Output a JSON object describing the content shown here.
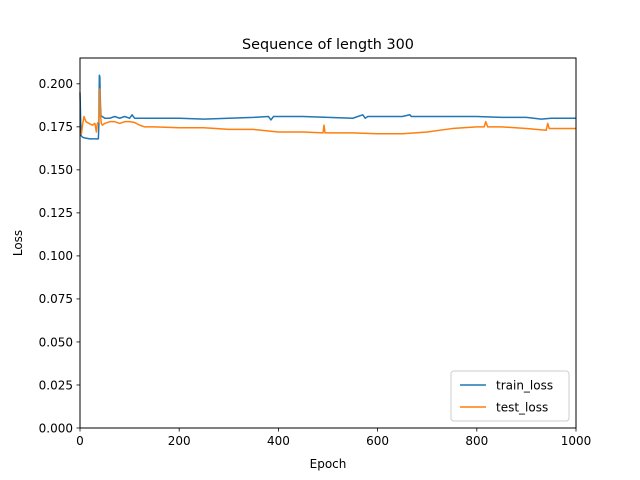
{
  "chart_data": {
    "type": "line",
    "title": "Sequence of length 300",
    "xlabel": "Epoch",
    "ylabel": "Loss",
    "xlim": [
      0,
      1000
    ],
    "ylim": [
      0.0,
      0.215
    ],
    "xticks": [
      0,
      200,
      400,
      600,
      800,
      1000
    ],
    "xtick_labels": [
      "0",
      "200",
      "400",
      "600",
      "800",
      "1000"
    ],
    "yticks": [
      0.0,
      0.025,
      0.05,
      0.075,
      0.1,
      0.125,
      0.15,
      0.175,
      0.2
    ],
    "ytick_labels": [
      "0.000",
      "0.025",
      "0.050",
      "0.075",
      "0.100",
      "0.125",
      "0.150",
      "0.175",
      "0.200"
    ],
    "grid": false,
    "legend_position": "bottom-right",
    "series": [
      {
        "name": "train_loss",
        "color": "#1f77b4",
        "x": [
          0,
          2,
          5,
          10,
          20,
          30,
          37,
          38,
          39,
          40,
          41,
          42,
          43,
          45,
          50,
          60,
          70,
          80,
          90,
          100,
          105,
          110,
          120,
          150,
          200,
          250,
          300,
          350,
          380,
          385,
          390,
          400,
          450,
          500,
          550,
          570,
          575,
          580,
          600,
          650,
          665,
          668,
          672,
          700,
          750,
          800,
          850,
          900,
          930,
          950,
          1000
        ],
        "y": [
          0.195,
          0.17,
          0.169,
          0.1685,
          0.168,
          0.168,
          0.168,
          0.176,
          0.205,
          0.204,
          0.19,
          0.182,
          0.181,
          0.181,
          0.18,
          0.18,
          0.181,
          0.18,
          0.181,
          0.18,
          0.182,
          0.18,
          0.18,
          0.18,
          0.18,
          0.1795,
          0.18,
          0.1805,
          0.181,
          0.179,
          0.181,
          0.181,
          0.181,
          0.1805,
          0.18,
          0.182,
          0.18,
          0.181,
          0.181,
          0.181,
          0.182,
          0.181,
          0.181,
          0.181,
          0.181,
          0.181,
          0.1805,
          0.1805,
          0.1795,
          0.18,
          0.18
        ]
      },
      {
        "name": "test_loss",
        "color": "#ff7f0e",
        "x": [
          0,
          3,
          5,
          8,
          12,
          18,
          25,
          30,
          33,
          35,
          38,
          39,
          40,
          41,
          43,
          45,
          50,
          60,
          70,
          80,
          90,
          100,
          110,
          120,
          130,
          150,
          200,
          250,
          300,
          350,
          400,
          450,
          490,
          492,
          494,
          500,
          550,
          600,
          650,
          700,
          750,
          800,
          815,
          818,
          822,
          850,
          900,
          940,
          943,
          946,
          950,
          1000
        ],
        "y": [
          0.171,
          0.171,
          0.176,
          0.181,
          0.178,
          0.177,
          0.176,
          0.177,
          0.172,
          0.177,
          0.178,
          0.185,
          0.197,
          0.183,
          0.177,
          0.176,
          0.177,
          0.178,
          0.178,
          0.177,
          0.178,
          0.178,
          0.1775,
          0.176,
          0.175,
          0.175,
          0.1745,
          0.1745,
          0.1735,
          0.1735,
          0.172,
          0.172,
          0.1715,
          0.176,
          0.1715,
          0.1715,
          0.1715,
          0.171,
          0.171,
          0.172,
          0.174,
          0.175,
          0.175,
          0.178,
          0.175,
          0.175,
          0.174,
          0.173,
          0.177,
          0.174,
          0.174,
          0.174
        ]
      }
    ]
  }
}
